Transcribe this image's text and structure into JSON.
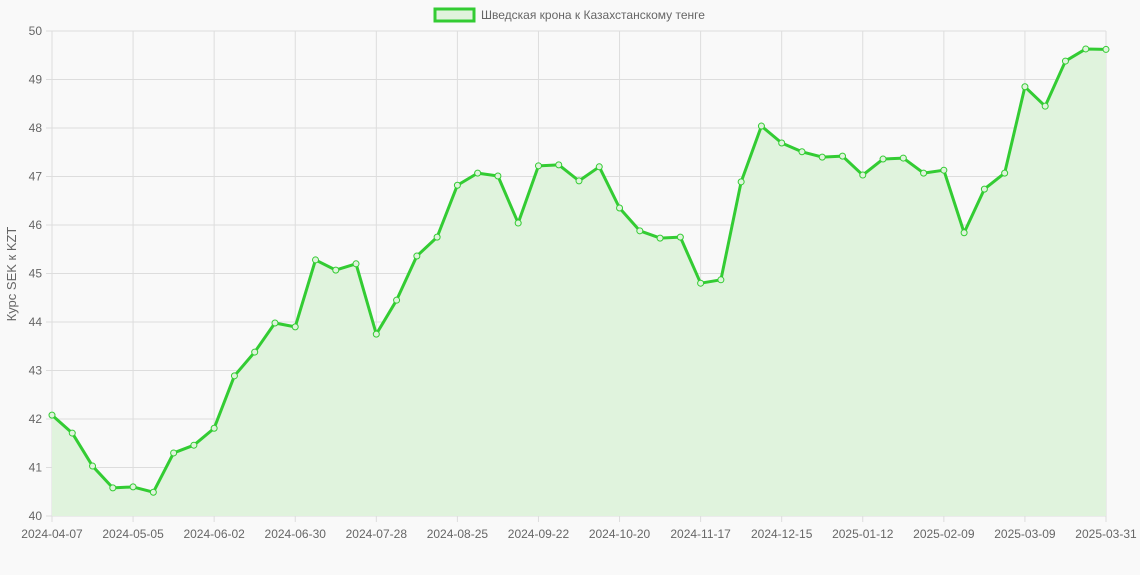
{
  "chart_data": {
    "type": "line",
    "title": "",
    "legend": {
      "label": "Шведская крона к Казахстанскому тенге",
      "position": "top"
    },
    "ylabel": "Курс SEK к KZT",
    "xlabel": "",
    "ylim": [
      40,
      50
    ],
    "yticks": [
      40,
      41,
      42,
      43,
      44,
      45,
      46,
      47,
      48,
      49,
      50
    ],
    "grid": true,
    "fill": true,
    "colors": {
      "line": "#33cc33",
      "fill": "#e0f3dd",
      "grid": "#dddddd"
    },
    "x": [
      "2024-04-07",
      "2024-04-14",
      "2024-04-21",
      "2024-04-28",
      "2024-05-05",
      "2024-05-12",
      "2024-05-19",
      "2024-05-26",
      "2024-06-02",
      "2024-06-09",
      "2024-06-16",
      "2024-06-23",
      "2024-06-30",
      "2024-07-07",
      "2024-07-14",
      "2024-07-21",
      "2024-07-28",
      "2024-08-04",
      "2024-08-11",
      "2024-08-18",
      "2024-08-25",
      "2024-09-01",
      "2024-09-08",
      "2024-09-15",
      "2024-09-22",
      "2024-09-29",
      "2024-10-06",
      "2024-10-13",
      "2024-10-20",
      "2024-10-27",
      "2024-11-03",
      "2024-11-10",
      "2024-11-17",
      "2024-11-24",
      "2024-12-01",
      "2024-12-08",
      "2024-12-15",
      "2024-12-22",
      "2024-12-29",
      "2025-01-05",
      "2025-01-12",
      "2025-01-19",
      "2025-01-26",
      "2025-02-02",
      "2025-02-09",
      "2025-02-16",
      "2025-02-23",
      "2025-03-02",
      "2025-03-09",
      "2025-03-16",
      "2025-03-23",
      "2025-03-30",
      "2025-03-31"
    ],
    "values": [
      42.08,
      41.71,
      41.03,
      40.58,
      40.6,
      40.49,
      41.3,
      41.46,
      41.81,
      42.89,
      43.38,
      43.98,
      43.9,
      45.28,
      45.07,
      45.2,
      43.75,
      44.45,
      45.36,
      45.75,
      46.82,
      47.07,
      47.01,
      46.04,
      47.22,
      47.24,
      46.91,
      47.2,
      46.35,
      45.88,
      45.73,
      45.75,
      44.8,
      44.87,
      46.89,
      48.04,
      47.69,
      47.51,
      47.4,
      47.42,
      47.03,
      47.36,
      47.38,
      47.07,
      47.13,
      45.84,
      46.74,
      47.07,
      48.85,
      48.45,
      49.38,
      49.63,
      49.62
    ]
  }
}
